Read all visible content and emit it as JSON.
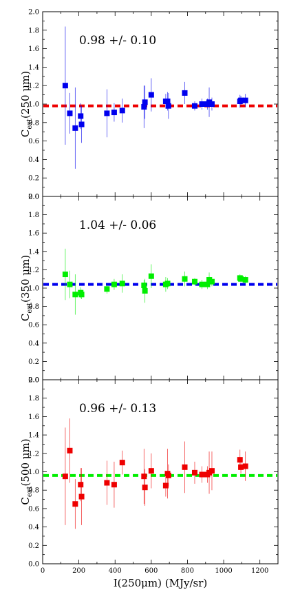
{
  "chart_data": [
    {
      "type": "scatter",
      "ylabel_main": "C",
      "ylabel_sub": "ext",
      "ylabel_rest": "(250 μm)",
      "annotation": "0.98 +/- 0.10",
      "marker_color": "#0000ee",
      "fit_line": {
        "value": 0.98,
        "color": "#ee0000",
        "style": "dashed"
      },
      "xlim": [
        0,
        1300
      ],
      "ylim": [
        0,
        2.0
      ],
      "xticks": [
        0,
        200,
        400,
        600,
        800,
        1000,
        1200
      ],
      "yticks": [
        "0.0",
        "0.2",
        "0.4",
        "0.6",
        "0.8",
        "1.0",
        "1.2",
        "1.4",
        "1.6",
        "1.8",
        "2.0"
      ],
      "points": [
        {
          "x": 125,
          "y": 1.2,
          "yerr": 0.64
        },
        {
          "x": 150,
          "y": 0.9,
          "yerr": 0.22
        },
        {
          "x": 180,
          "y": 0.74,
          "yerr": 0.44
        },
        {
          "x": 210,
          "y": 0.87,
          "yerr": 0.14
        },
        {
          "x": 215,
          "y": 0.78,
          "yerr": 0.2
        },
        {
          "x": 355,
          "y": 0.9,
          "yerr": 0.26
        },
        {
          "x": 395,
          "y": 0.91,
          "yerr": 0.1
        },
        {
          "x": 440,
          "y": 0.93,
          "yerr": 0.13
        },
        {
          "x": 560,
          "y": 0.97,
          "yerr": 0.23
        },
        {
          "x": 565,
          "y": 1.02,
          "yerr": 0.18
        },
        {
          "x": 600,
          "y": 1.1,
          "yerr": 0.18
        },
        {
          "x": 680,
          "y": 1.03,
          "yerr": 0.08
        },
        {
          "x": 690,
          "y": 1.03,
          "yerr": 0.1
        },
        {
          "x": 695,
          "y": 0.98,
          "yerr": 0.14
        },
        {
          "x": 785,
          "y": 1.12,
          "yerr": 0.12
        },
        {
          "x": 840,
          "y": 0.98,
          "yerr": 0.05
        },
        {
          "x": 880,
          "y": 1.0,
          "yerr": 0.06
        },
        {
          "x": 910,
          "y": 1.0,
          "yerr": 0.06
        },
        {
          "x": 920,
          "y": 1.02,
          "yerr": 0.16
        },
        {
          "x": 935,
          "y": 1.0,
          "yerr": 0.07
        },
        {
          "x": 1090,
          "y": 1.03,
          "yerr": 0.07
        },
        {
          "x": 1095,
          "y": 1.04,
          "yerr": 0.05
        },
        {
          "x": 1120,
          "y": 1.04,
          "yerr": 0.07
        }
      ]
    },
    {
      "type": "scatter",
      "ylabel_main": "C",
      "ylabel_sub": "ext",
      "ylabel_rest": "(350 μm)",
      "annotation": "1.04 +/- 0.06",
      "marker_color": "#00ee00",
      "fit_line": {
        "value": 1.04,
        "color": "#0000ee",
        "style": "dashed"
      },
      "xlim": [
        0,
        1300
      ],
      "ylim": [
        0,
        2.0
      ],
      "xticks": [
        0,
        200,
        400,
        600,
        800,
        1000,
        1200
      ],
      "yticks": [
        "0.0",
        "0.2",
        "0.4",
        "0.6",
        "0.8",
        "1.0",
        "1.2",
        "1.4",
        "1.6",
        "1.8",
        "2.0"
      ],
      "points": [
        {
          "x": 125,
          "y": 1.15,
          "yerr": 0.28
        },
        {
          "x": 150,
          "y": 1.04,
          "yerr": 0.15
        },
        {
          "x": 180,
          "y": 0.93,
          "yerr": 0.22
        },
        {
          "x": 210,
          "y": 0.95,
          "yerr": 0.06
        },
        {
          "x": 215,
          "y": 0.93,
          "yerr": 0.05
        },
        {
          "x": 355,
          "y": 0.99,
          "yerr": 0.05
        },
        {
          "x": 395,
          "y": 1.04,
          "yerr": 0.06
        },
        {
          "x": 440,
          "y": 1.05,
          "yerr": 0.1
        },
        {
          "x": 560,
          "y": 1.03,
          "yerr": 0.06
        },
        {
          "x": 565,
          "y": 0.97,
          "yerr": 0.13
        },
        {
          "x": 600,
          "y": 1.13,
          "yerr": 0.13
        },
        {
          "x": 680,
          "y": 1.04,
          "yerr": 0.08
        },
        {
          "x": 690,
          "y": 1.05,
          "yerr": 0.06
        },
        {
          "x": 785,
          "y": 1.1,
          "yerr": 0.08
        },
        {
          "x": 840,
          "y": 1.07,
          "yerr": 0.04
        },
        {
          "x": 880,
          "y": 1.04,
          "yerr": 0.05
        },
        {
          "x": 910,
          "y": 1.04,
          "yerr": 0.05
        },
        {
          "x": 920,
          "y": 1.09,
          "yerr": 0.08
        },
        {
          "x": 935,
          "y": 1.07,
          "yerr": 0.05
        },
        {
          "x": 1090,
          "y": 1.11,
          "yerr": 0.04
        },
        {
          "x": 1095,
          "y": 1.1,
          "yerr": 0.03
        },
        {
          "x": 1120,
          "y": 1.09,
          "yerr": 0.04
        }
      ]
    },
    {
      "type": "scatter",
      "ylabel_main": "C",
      "ylabel_sub": "ext",
      "ylabel_rest": "(500 μm)",
      "annotation": "0.96 +/- 0.13",
      "marker_color": "#ee0000",
      "fit_line": {
        "value": 0.96,
        "color": "#00ee00",
        "style": "dashed"
      },
      "xlim": [
        0,
        1300
      ],
      "ylim": [
        0,
        2.0
      ],
      "xticks": [
        "0",
        "200",
        "400",
        "600",
        "800",
        "1000",
        "1200"
      ],
      "yticks": [
        "0.0",
        "0.2",
        "0.4",
        "0.6",
        "0.8",
        "1.0",
        "1.2",
        "1.4",
        "1.6",
        "1.8",
        "2.0"
      ],
      "xlabel": "I(250μm) (MJy/sr)",
      "points": [
        {
          "x": 125,
          "y": 0.95,
          "yerr": 0.53
        },
        {
          "x": 150,
          "y": 1.23,
          "yerr": 0.35
        },
        {
          "x": 180,
          "y": 0.65,
          "yerr": 0.27
        },
        {
          "x": 210,
          "y": 0.86,
          "yerr": 0.18
        },
        {
          "x": 215,
          "y": 0.73,
          "yerr": 0.31
        },
        {
          "x": 355,
          "y": 0.88,
          "yerr": 0.24
        },
        {
          "x": 395,
          "y": 0.86,
          "yerr": 0.25
        },
        {
          "x": 440,
          "y": 1.1,
          "yerr": 0.13
        },
        {
          "x": 560,
          "y": 0.95,
          "yerr": 0.3
        },
        {
          "x": 565,
          "y": 0.83,
          "yerr": 0.2
        },
        {
          "x": 600,
          "y": 1.01,
          "yerr": 0.19
        },
        {
          "x": 680,
          "y": 0.85,
          "yerr": 0.12
        },
        {
          "x": 690,
          "y": 0.98,
          "yerr": 0.27
        },
        {
          "x": 695,
          "y": 0.96,
          "yerr": 0.12
        },
        {
          "x": 785,
          "y": 1.05,
          "yerr": 0.28
        },
        {
          "x": 840,
          "y": 0.99,
          "yerr": 0.12
        },
        {
          "x": 880,
          "y": 0.97,
          "yerr": 0.09
        },
        {
          "x": 910,
          "y": 0.97,
          "yerr": 0.09
        },
        {
          "x": 920,
          "y": 0.99,
          "yerr": 0.23
        },
        {
          "x": 935,
          "y": 1.01,
          "yerr": 0.21
        },
        {
          "x": 1090,
          "y": 1.13,
          "yerr": 0.11
        },
        {
          "x": 1095,
          "y": 1.05,
          "yerr": 0.07
        },
        {
          "x": 1120,
          "y": 1.06,
          "yerr": 0.16
        }
      ]
    }
  ]
}
